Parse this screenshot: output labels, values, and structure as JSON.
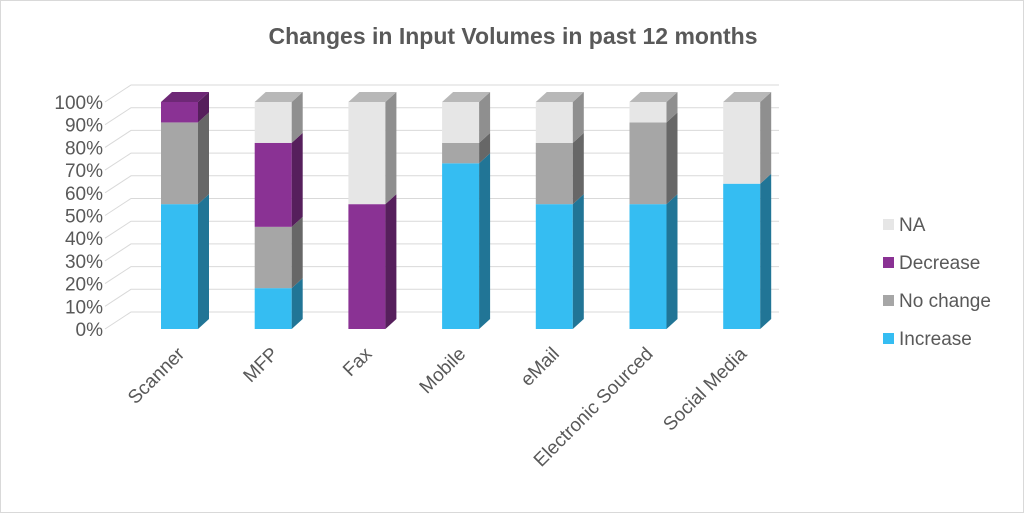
{
  "chart_data": {
    "type": "bar",
    "stacked": true,
    "three_d": true,
    "title": "Changes in Input Volumes in past 12 months",
    "categories": [
      "Scanner",
      "MFP",
      "Fax",
      "Mobile",
      "eMail",
      "Electronic Sourced",
      "Social Media"
    ],
    "series": [
      {
        "name": "Increase",
        "color": "#35bdf2",
        "values": [
          55,
          18,
          0,
          73,
          55,
          55,
          64
        ]
      },
      {
        "name": "No change",
        "color": "#a6a6a6",
        "values": [
          36,
          27,
          0,
          9,
          27,
          36,
          0
        ]
      },
      {
        "name": "Decrease",
        "color": "#8a3294",
        "values": [
          9,
          37,
          55,
          0,
          0,
          0,
          0
        ]
      },
      {
        "name": "NA",
        "color": "#e6e6e6",
        "values": [
          0,
          18,
          45,
          18,
          18,
          9,
          36
        ]
      }
    ],
    "yticks": [
      "0%",
      "10%",
      "20%",
      "30%",
      "40%",
      "50%",
      "60%",
      "70%",
      "80%",
      "90%",
      "100%"
    ],
    "ylim": [
      0,
      100
    ],
    "grid": true,
    "legend_position": "right",
    "legend_order": [
      "NA",
      "Decrease",
      "No change",
      "Increase"
    ]
  }
}
